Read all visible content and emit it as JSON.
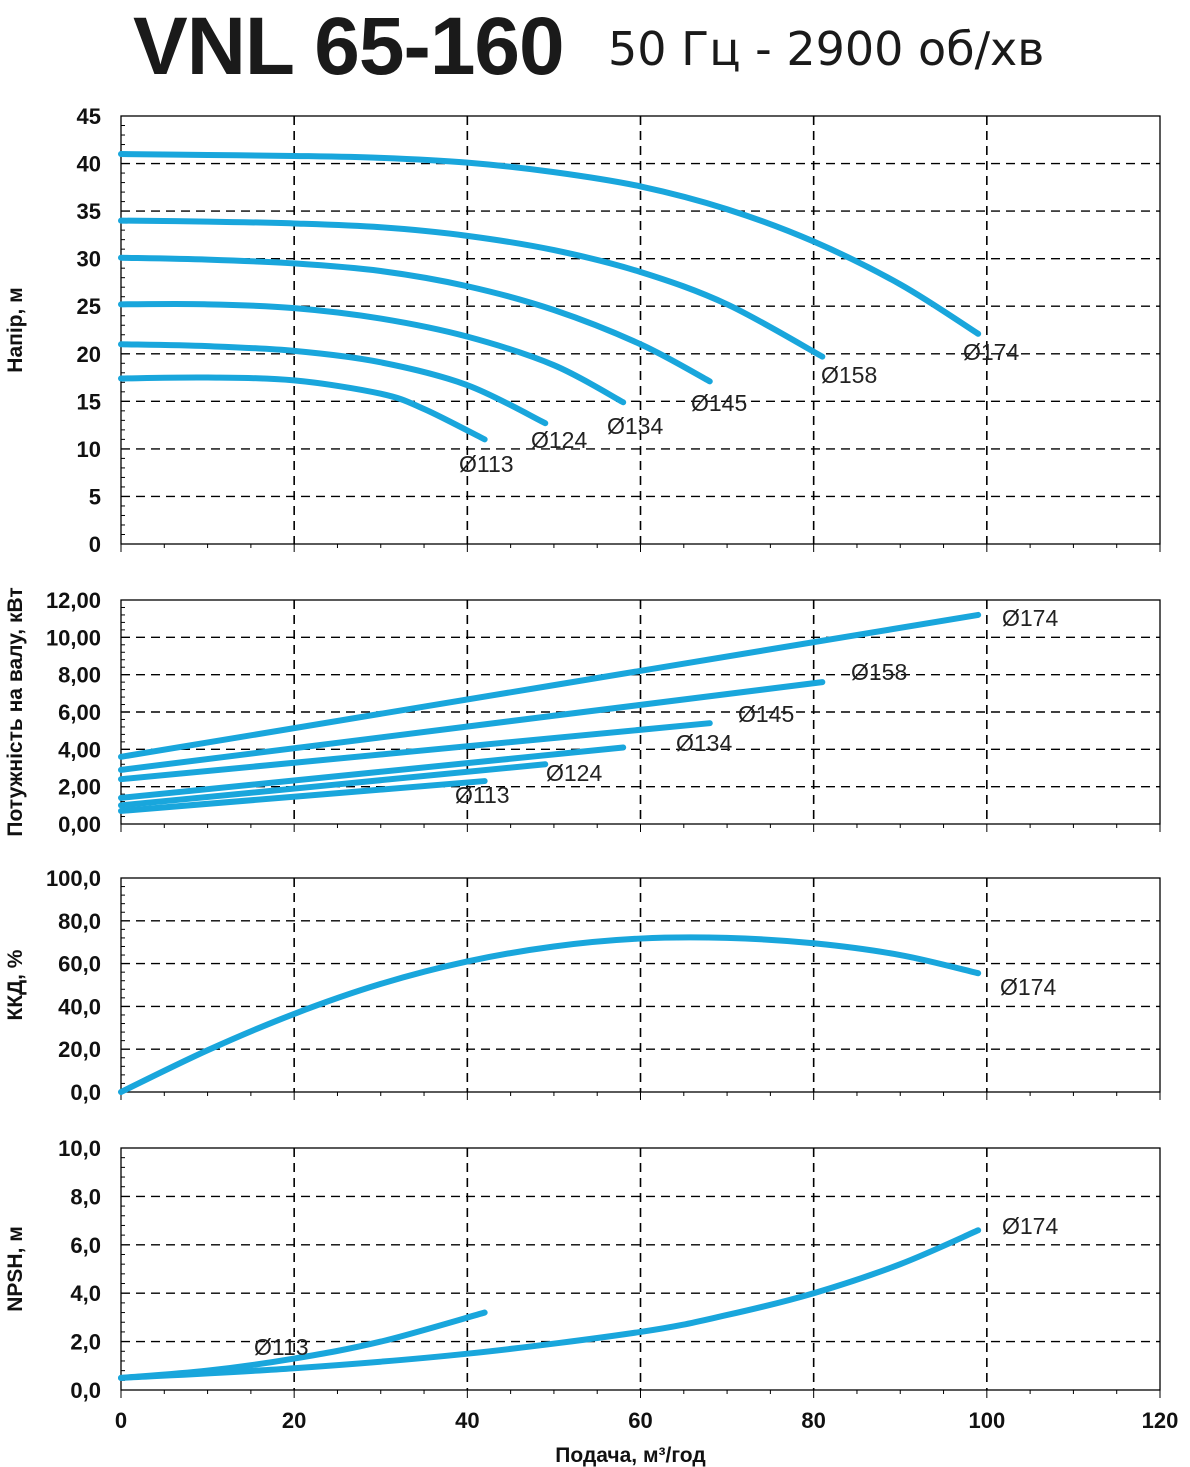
{
  "header": {
    "title": "VNL 65-160",
    "subtitle": "50 Гц - 2900 об/хв"
  },
  "colors": {
    "curve": "#19A6DC",
    "axis": "#000000",
    "grid": "#000000",
    "text": "#111111"
  },
  "chart_data": [
    {
      "type": "line",
      "panel": "head",
      "ylabel": "Напір, м",
      "xlim": [
        0,
        120
      ],
      "ylim": [
        0,
        45
      ],
      "yticks": [
        "0",
        "5",
        "10",
        "15",
        "20",
        "25",
        "30",
        "35",
        "40",
        "45"
      ],
      "grid": true,
      "series": [
        {
          "name": "Ø174",
          "x": [
            0,
            10,
            20,
            30,
            40,
            50,
            60,
            70,
            80,
            90,
            99
          ],
          "y": [
            41,
            40.9,
            40.8,
            40.6,
            40.1,
            39.1,
            37.6,
            35.2,
            31.8,
            27.3,
            22.1
          ]
        },
        {
          "name": "Ø158",
          "x": [
            0,
            10,
            20,
            30,
            40,
            50,
            60,
            70,
            81
          ],
          "y": [
            34,
            33.9,
            33.7,
            33.3,
            32.4,
            30.9,
            28.6,
            25.2,
            19.7
          ]
        },
        {
          "name": "Ø145",
          "x": [
            0,
            10,
            20,
            30,
            40,
            50,
            60,
            68
          ],
          "y": [
            30.1,
            29.9,
            29.5,
            28.7,
            27.1,
            24.6,
            21.0,
            17.1
          ]
        },
        {
          "name": "Ø134",
          "x": [
            0,
            10,
            20,
            30,
            40,
            50,
            58
          ],
          "y": [
            25.2,
            25.2,
            24.8,
            23.7,
            21.8,
            18.8,
            14.9
          ]
        },
        {
          "name": "Ø124",
          "x": [
            0,
            10,
            20,
            30,
            40,
            49
          ],
          "y": [
            21,
            20.8,
            20.3,
            19.1,
            16.7,
            12.7
          ]
        },
        {
          "name": "Ø113",
          "x": [
            0,
            10,
            20,
            30,
            35,
            42
          ],
          "y": [
            17.4,
            17.5,
            17.2,
            15.8,
            14.2,
            11.0
          ]
        }
      ]
    },
    {
      "type": "line",
      "panel": "power",
      "ylabel": "Потужність на валу, кВт",
      "xlim": [
        0,
        120
      ],
      "ylim": [
        0,
        12
      ],
      "yticks": [
        "0,00",
        "2,00",
        "4,00",
        "6,00",
        "8,00",
        "10,00",
        "12,00"
      ],
      "grid": true,
      "series": [
        {
          "name": "Ø174",
          "x": [
            0,
            99
          ],
          "y": [
            3.6,
            11.2
          ]
        },
        {
          "name": "Ø158",
          "x": [
            0,
            81
          ],
          "y": [
            2.9,
            7.6
          ]
        },
        {
          "name": "Ø145",
          "x": [
            0,
            68
          ],
          "y": [
            2.4,
            5.4
          ]
        },
        {
          "name": "Ø134",
          "x": [
            0,
            58
          ],
          "y": [
            1.4,
            4.1
          ]
        },
        {
          "name": "Ø124",
          "x": [
            0,
            49
          ],
          "y": [
            1.0,
            3.2
          ]
        },
        {
          "name": "Ø113",
          "x": [
            0,
            42
          ],
          "y": [
            0.7,
            2.3
          ]
        }
      ]
    },
    {
      "type": "line",
      "panel": "efficiency",
      "ylabel": "ККД, %",
      "xlim": [
        0,
        120
      ],
      "ylim": [
        0,
        100
      ],
      "yticks": [
        "0,0",
        "20,0",
        "40,0",
        "60,0",
        "80,0",
        "100,0"
      ],
      "grid": true,
      "series": [
        {
          "name": "Ø174",
          "x": [
            0,
            10,
            20,
            30,
            40,
            50,
            60,
            70,
            80,
            90,
            99
          ],
          "y": [
            0,
            19.5,
            36.5,
            50.5,
            61,
            68,
            71.7,
            72,
            69.5,
            64,
            55.5
          ]
        }
      ]
    },
    {
      "type": "line",
      "panel": "npsh",
      "ylabel": "NPSH, м",
      "xlabel": "Подача, м³/год",
      "xlim": [
        0,
        120
      ],
      "ylim": [
        0,
        10
      ],
      "xticks": [
        "0",
        "20",
        "40",
        "60",
        "80",
        "100",
        "120"
      ],
      "yticks": [
        "0,0",
        "2,0",
        "4,0",
        "6,0",
        "8,0",
        "10,0"
      ],
      "grid": true,
      "series": [
        {
          "name": "Ø174",
          "x": [
            0,
            20,
            40,
            60,
            70,
            80,
            90,
            99
          ],
          "y": [
            0.5,
            0.9,
            1.5,
            2.4,
            3.1,
            4.0,
            5.2,
            6.6
          ]
        },
        {
          "name": "Ø113",
          "x": [
            0,
            10,
            20,
            30,
            42
          ],
          "y": [
            0.5,
            0.8,
            1.3,
            2.0,
            3.2
          ]
        }
      ]
    }
  ]
}
